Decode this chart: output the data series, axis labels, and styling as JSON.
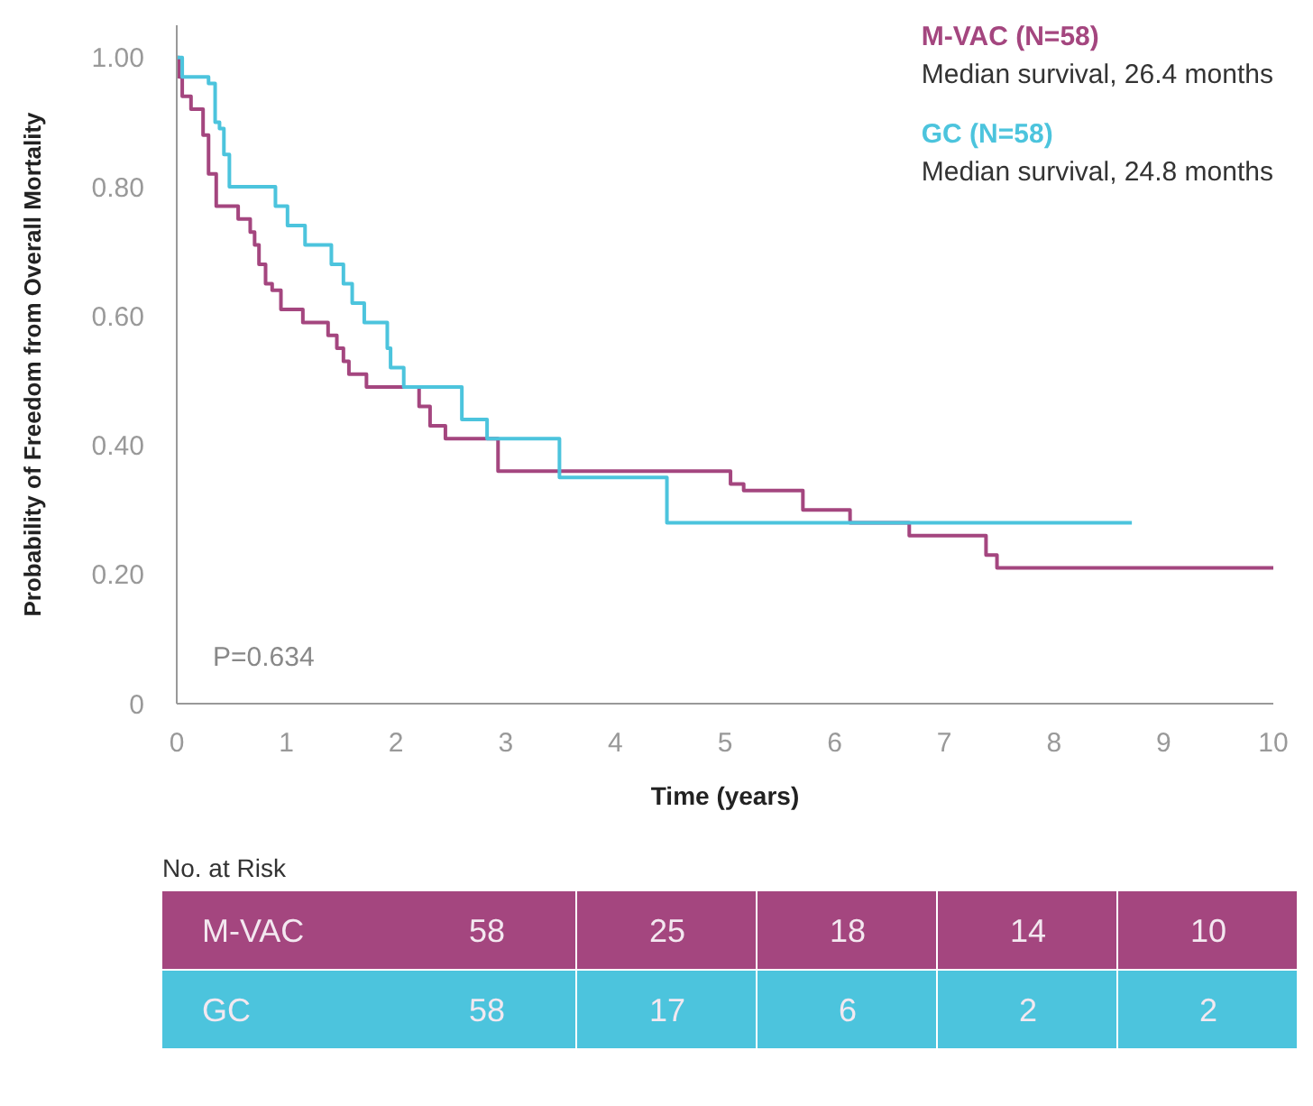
{
  "chart_data": [
    {
      "type": "step",
      "xlabel": "Time (years)",
      "ylabel": "Probability of Freedom from Overall Mortality",
      "xlim": [
        0,
        10
      ],
      "ylim": [
        0,
        1.05
      ],
      "xticks": [
        0,
        1,
        2,
        3,
        4,
        5,
        6,
        7,
        8,
        9,
        10
      ],
      "yticks": [
        {
          "value": 0,
          "label": "0"
        },
        {
          "value": 0.2,
          "label": "0.20"
        },
        {
          "value": 0.4,
          "label": "0.40"
        },
        {
          "value": 0.6,
          "label": "0.60"
        },
        {
          "value": 0.8,
          "label": "0.80"
        },
        {
          "value": 1,
          "label": "1.00"
        }
      ],
      "legend": "top right",
      "annotations": [
        "Median survival, 26.4 months",
        "Median survival, 24.8 months",
        "P=0.634"
      ],
      "series": [
        {
          "name": "M-VAC (N=58)",
          "color": "#a4467f",
          "x": [
            0,
            0.02,
            0.05,
            0.13,
            0.24,
            0.29,
            0.36,
            0.56,
            0.67,
            0.71,
            0.75,
            0.81,
            0.87,
            0.95,
            1.15,
            1.38,
            1.46,
            1.52,
            1.57,
            1.73,
            2.21,
            2.31,
            2.45,
            2.93,
            5.05,
            5.17,
            5.71,
            6.14,
            6.68,
            7.38,
            7.48,
            10
          ],
          "values": [
            1,
            0.97,
            0.94,
            0.92,
            0.88,
            0.82,
            0.77,
            0.75,
            0.73,
            0.71,
            0.68,
            0.65,
            0.64,
            0.61,
            0.59,
            0.57,
            0.55,
            0.53,
            0.51,
            0.49,
            0.46,
            0.43,
            0.41,
            0.36,
            0.34,
            0.33,
            0.3,
            0.28,
            0.26,
            0.23,
            0.21,
            0.21
          ]
        },
        {
          "name": "GC (N=58)",
          "color": "#4cc4dd",
          "x": [
            0,
            0.05,
            0.29,
            0.35,
            0.39,
            0.43,
            0.48,
            0.9,
            1.01,
            1.17,
            1.41,
            1.52,
            1.6,
            1.71,
            1.92,
            1.95,
            2.07,
            2.6,
            2.83,
            3.49,
            4.47,
            8.71
          ],
          "values": [
            1,
            0.97,
            0.96,
            0.9,
            0.89,
            0.85,
            0.8,
            0.77,
            0.74,
            0.71,
            0.68,
            0.65,
            0.62,
            0.59,
            0.55,
            0.52,
            0.49,
            0.44,
            0.41,
            0.35,
            0.28,
            0.28
          ]
        }
      ]
    },
    {
      "type": "heatmap",
      "title": "No. at Risk",
      "data_labels": true,
      "categories": [
        null,
        null,
        null,
        null,
        null
      ],
      "y_categories": [
        "M-VAC",
        "GC"
      ],
      "cells": [
        [
          58,
          25,
          18,
          14,
          10
        ],
        [
          58,
          17,
          6,
          2,
          2
        ]
      ]
    }
  ]
}
